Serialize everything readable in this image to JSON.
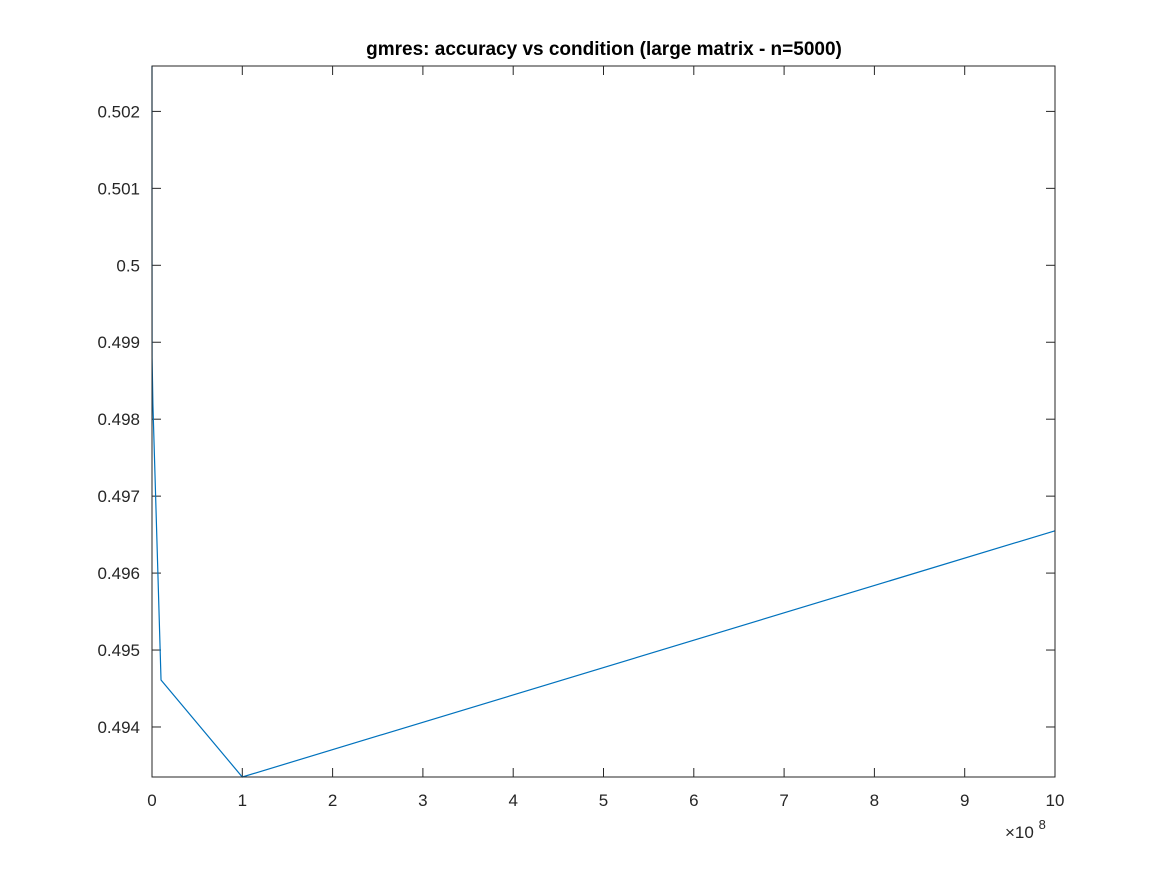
{
  "chart_data": {
    "type": "line",
    "title": "gmres: accuracy vs condition (large matrix - n=5000)",
    "xlabel": "",
    "ylabel": "",
    "x_exponent_label": {
      "times": "×10",
      "power": "8"
    },
    "xlim": [
      0,
      10
    ],
    "ylim": [
      0.49335,
      0.50259
    ],
    "x_ticks": [
      0,
      1,
      2,
      3,
      4,
      5,
      6,
      7,
      8,
      9,
      10
    ],
    "x_tick_labels": [
      "0",
      "1",
      "2",
      "3",
      "4",
      "5",
      "6",
      "7",
      "8",
      "9",
      "10"
    ],
    "y_ticks": [
      0.494,
      0.495,
      0.496,
      0.497,
      0.498,
      0.499,
      0.5,
      0.501,
      0.502
    ],
    "y_tick_labels": [
      "0.494",
      "0.495",
      "0.496",
      "0.497",
      "0.498",
      "0.499",
      "0.5",
      "0.501",
      "0.502"
    ],
    "grid": false,
    "legend": "none",
    "series": [
      {
        "color": "#0072BD",
        "x": [
          1e-05,
          0.0001,
          0.001,
          0.01,
          0.1,
          1,
          10
        ],
        "y": [
          0.50259,
          0.5005,
          0.4988,
          0.4982,
          0.49461,
          0.49335,
          0.49655
        ]
      }
    ]
  }
}
